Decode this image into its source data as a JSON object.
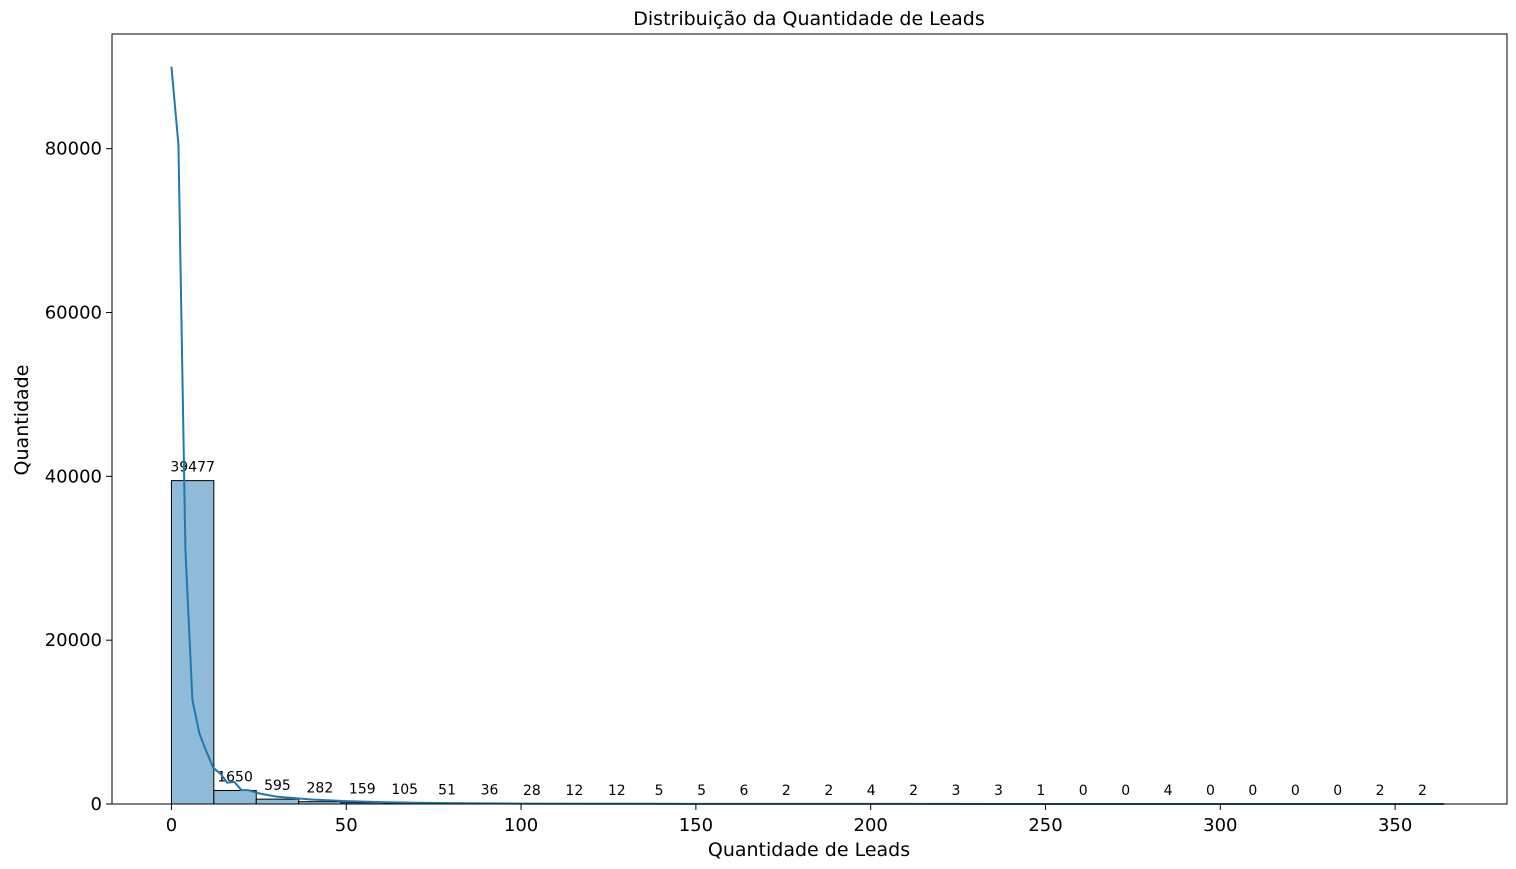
{
  "chart_data": {
    "type": "bar",
    "title": "Distribuição da Quantidade de Leads",
    "xlabel": "Quantidade de Leads",
    "ylabel": "Quantidade",
    "xlim": [
      -17,
      382
    ],
    "ylim": [
      0,
      94000
    ],
    "xticks": [
      0,
      50,
      100,
      150,
      200,
      250,
      300,
      350
    ],
    "yticks": [
      0,
      20000,
      40000,
      60000,
      80000
    ],
    "bin_start": 0,
    "bin_width": 12.13,
    "values": [
      39477,
      1650,
      595,
      282,
      159,
      105,
      51,
      36,
      28,
      12,
      12,
      5,
      5,
      6,
      2,
      2,
      4,
      2,
      3,
      3,
      1,
      0,
      0,
      4,
      0,
      0,
      0,
      0,
      2,
      2
    ],
    "kde": {
      "x": [
        0,
        2,
        4,
        6,
        8,
        10,
        12,
        14,
        16,
        18,
        20,
        22,
        25,
        30,
        40,
        50,
        60,
        70,
        80,
        90,
        100,
        120,
        150,
        200,
        250,
        300,
        350,
        364
      ],
      "y": [
        90000,
        80500,
        31000,
        12700,
        8600,
        6400,
        4400,
        3700,
        2600,
        2700,
        1700,
        1700,
        1300,
        900,
        550,
        350,
        230,
        150,
        100,
        70,
        50,
        30,
        15,
        8,
        5,
        4,
        3,
        2
      ]
    },
    "colors": {
      "bar_fill": "#8fbbd9",
      "bar_edge": "#000000",
      "kde_line": "#1f77b4"
    },
    "grid": false
  }
}
